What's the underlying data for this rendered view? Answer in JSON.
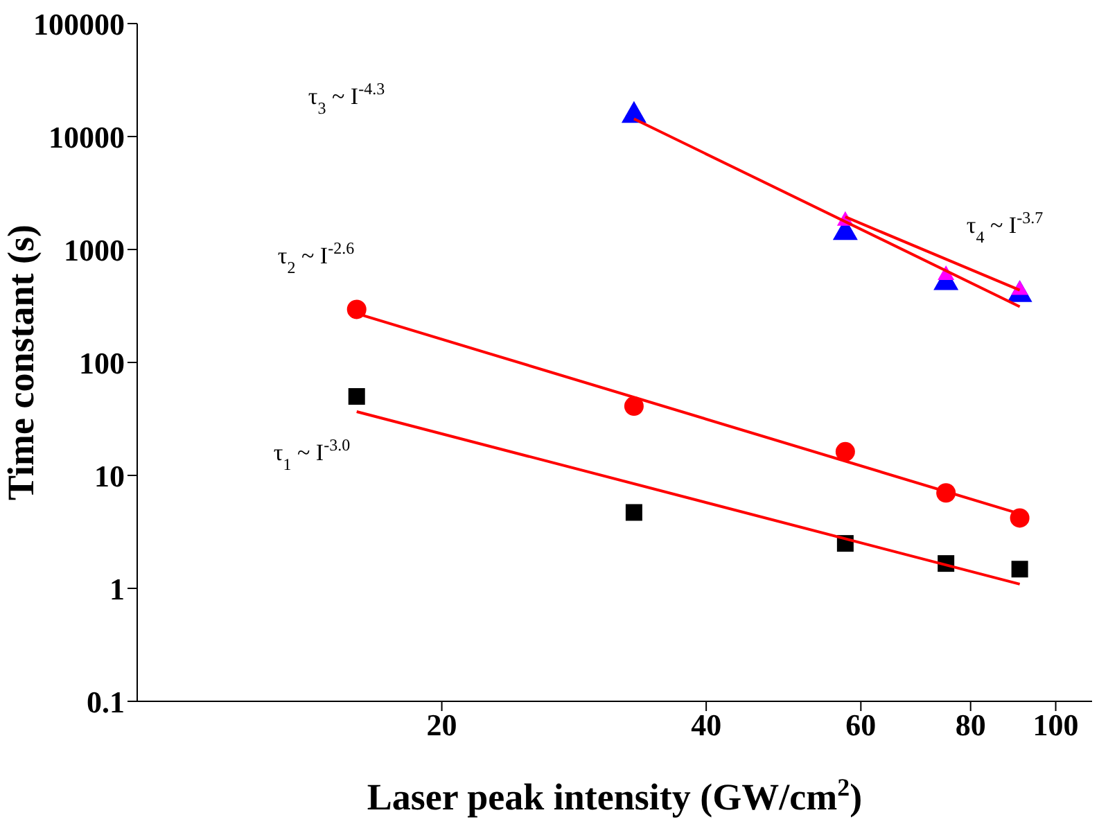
{
  "chart_data": {
    "type": "scatter",
    "xlabel": "Laser peak intensity (GW/cm$^{2}$)",
    "ylabel": "Time constant (s)",
    "log": "xy",
    "xlim": [
      9,
      110
    ],
    "xticks": [
      20,
      40,
      60,
      80,
      100
    ],
    "ylim": [
      0.1,
      100000
    ],
    "yticks": [
      0.1,
      1,
      10,
      100,
      1000,
      10000,
      100000
    ],
    "grid": false,
    "legend": false,
    "series": [
      {
        "marker": "square",
        "color": "#000000",
        "x": [
          16,
          33.1,
          57.6,
          75,
          91
        ],
        "values": [
          50,
          4.7,
          2.5,
          1.66,
          1.48
        ]
      },
      {
        "marker": "circle",
        "color": "#ff0000",
        "x": [
          16,
          33.1,
          57.6,
          75,
          91
        ],
        "values": [
          295,
          41,
          16.2,
          7,
          4.2
        ]
      },
      {
        "marker": "triangle",
        "color": "#0000ff",
        "x": [
          33.1,
          57.6,
          75,
          91
        ],
        "values": [
          16000,
          1470,
          530,
          415
        ]
      },
      {
        "marker": "triangle",
        "color": "#ff00ff",
        "x": [
          57.6,
          75,
          91
        ],
        "values": [
          1840,
          610,
          450
        ]
      },
      {
        "type": "line",
        "marker": "none",
        "color": "#ff0000",
        "x": [
          16,
          91
        ],
        "values": [
          36.7,
          1.09
        ]
      },
      {
        "type": "line",
        "marker": "none",
        "color": "#ff0000",
        "x": [
          16,
          91
        ],
        "values": [
          271,
          4.57
        ]
      },
      {
        "type": "line",
        "marker": "none",
        "color": "#ff0000",
        "x": [
          33.1,
          91
        ],
        "values": [
          14350,
          312
        ]
      },
      {
        "type": "line",
        "marker": "none",
        "color": "#ff0000",
        "x": [
          57.6,
          91
        ],
        "values": [
          1945,
          437
        ]
      }
    ],
    "annotations": [
      "τ$_{3}$ ~ I$^{-4.3}$",
      "τ$_{2}$ ~ I$^{-2.6}$",
      "τ$_{1}$ ~ I$^{-3.0}$",
      "τ$_{4}$ ~ I$^{-3.7}$"
    ]
  }
}
